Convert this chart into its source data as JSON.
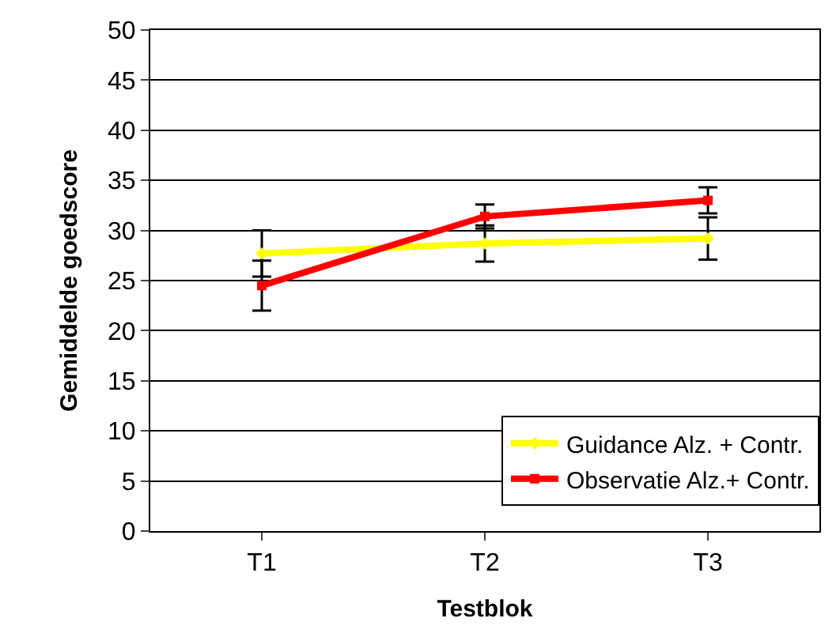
{
  "chart_data": {
    "type": "line",
    "xlabel": "Testblok",
    "ylabel": "Gemiddelde goedscore",
    "categories": [
      "T1",
      "T2",
      "T3"
    ],
    "series": [
      {
        "name": "Guidance Alz. + Contr.",
        "color": "#ffff00",
        "values": [
          27.7,
          28.7,
          29.2
        ],
        "errors": [
          2.3,
          1.8,
          2.1
        ],
        "marker": "diamond"
      },
      {
        "name": "Observatie Alz.+ Contr.",
        "color": "#ff0000",
        "values": [
          24.5,
          31.4,
          33.0
        ],
        "errors": [
          2.5,
          1.2,
          1.3
        ],
        "marker": "square"
      }
    ],
    "ylim": [
      0,
      50
    ],
    "yticks": [
      0,
      5,
      10,
      15,
      20,
      25,
      30,
      35,
      40,
      45,
      50
    ],
    "grid": "y",
    "legend": "bottom right",
    "line_style": "solid"
  }
}
